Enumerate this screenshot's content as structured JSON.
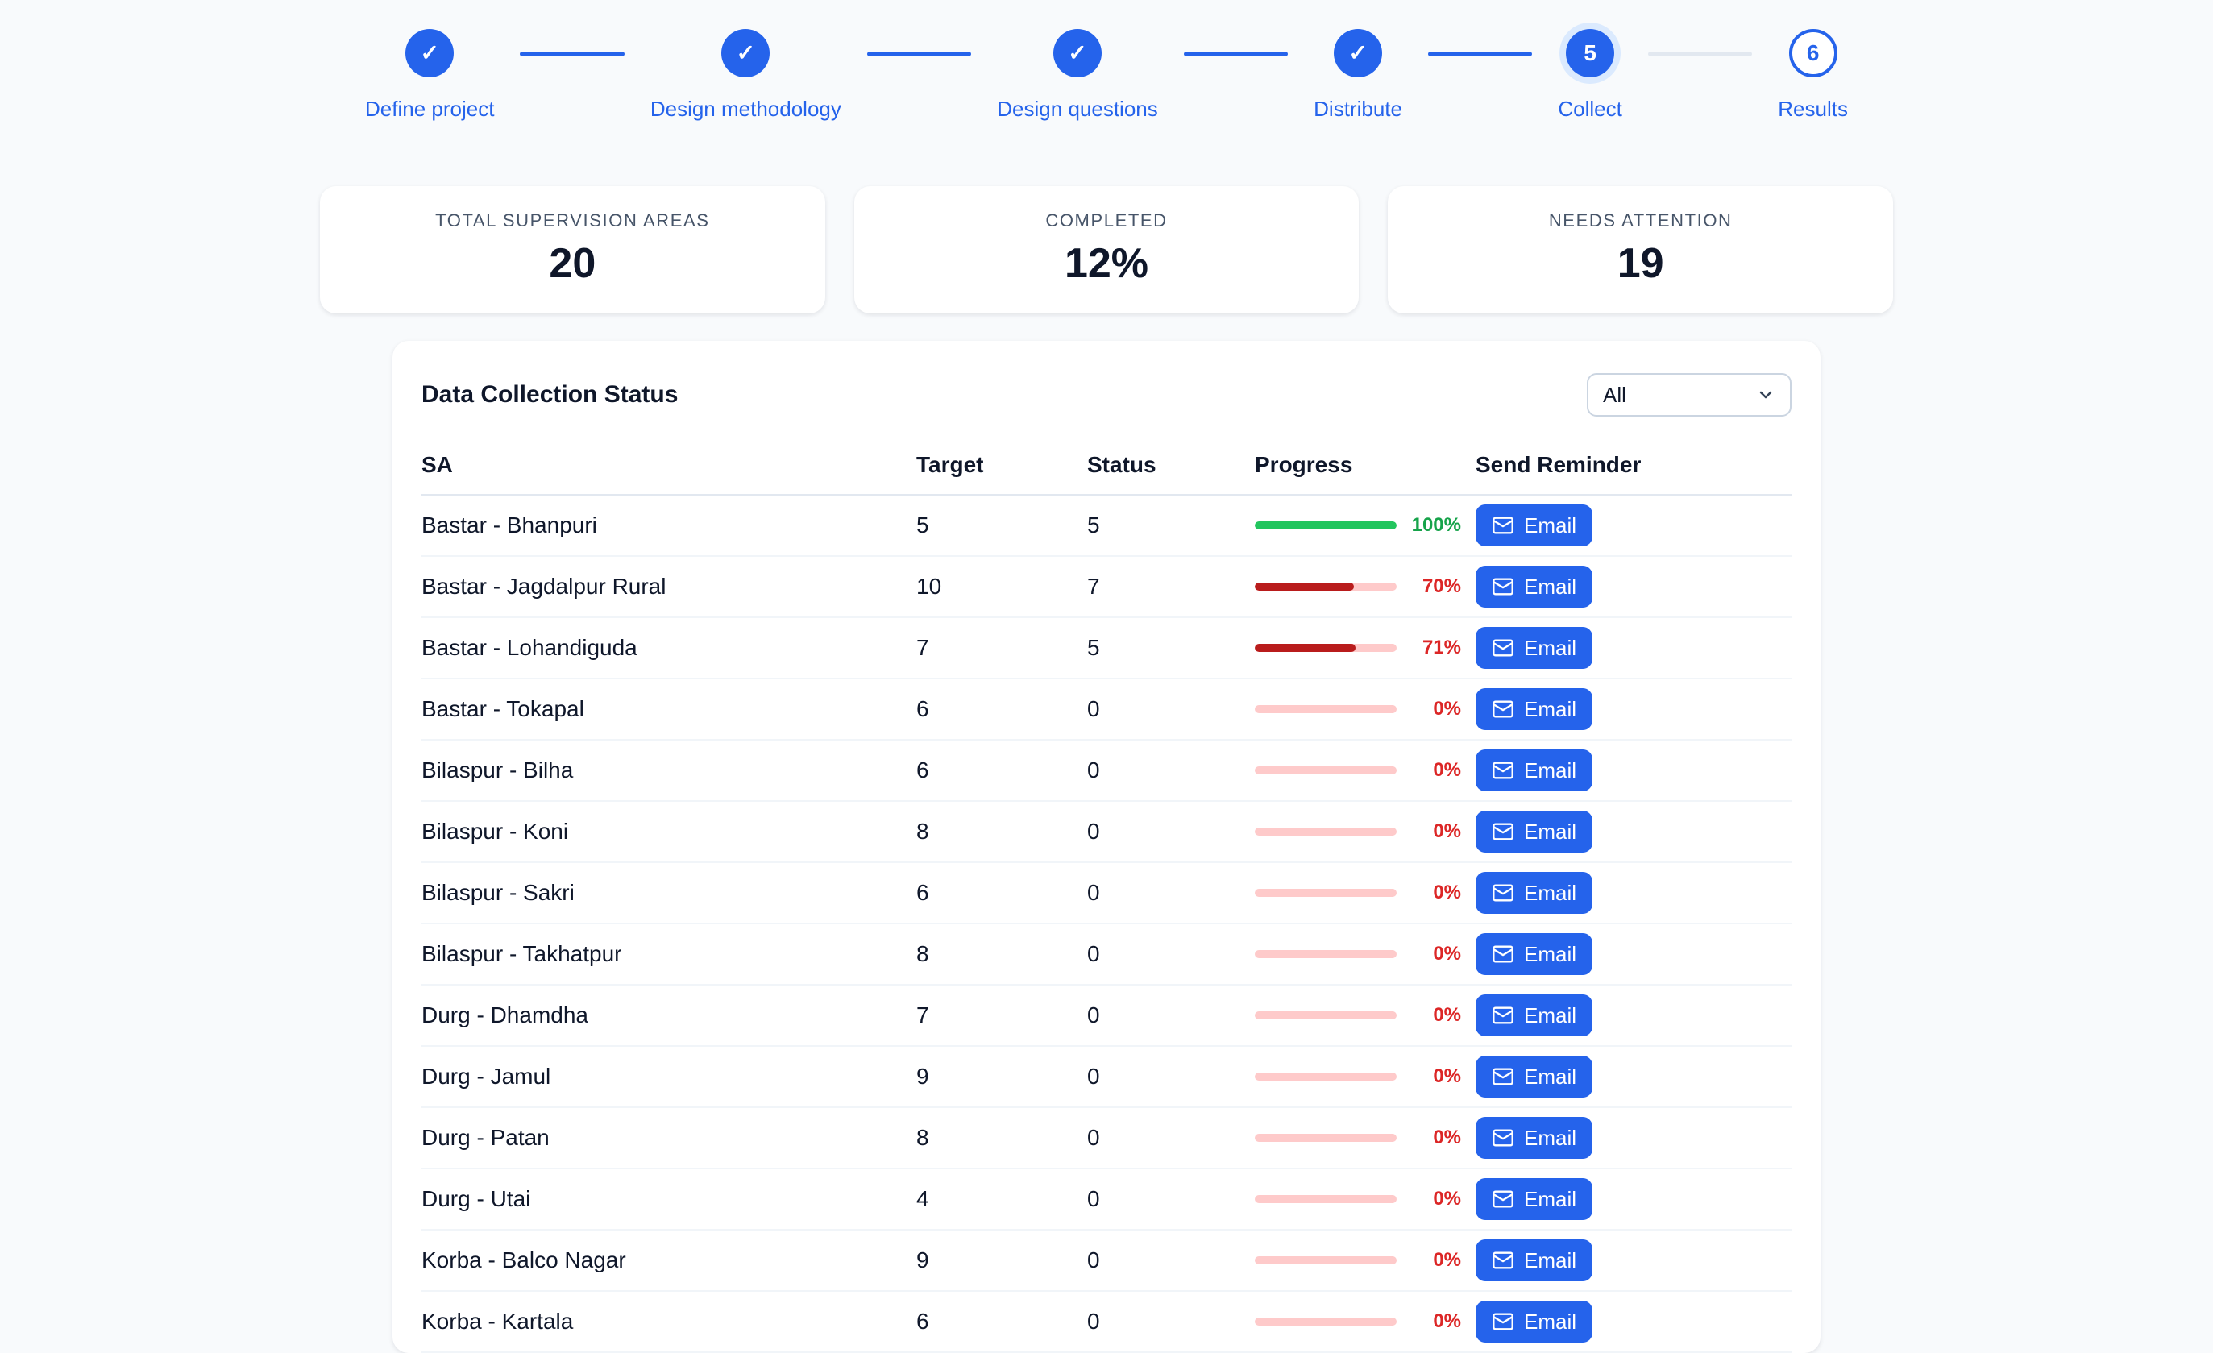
{
  "colors": {
    "accent_blue": "#2563eb",
    "success_green": "#22c55e",
    "success_text": "#16a34a",
    "danger_red": "#b91c1c",
    "danger_text": "#dc2626",
    "track_pink": "#fecaca",
    "background": "#f8fafc"
  },
  "icons": [
    "check-icon",
    "chevron-down-icon",
    "email-icon"
  ],
  "stepper": {
    "steps": [
      {
        "label": "Define project",
        "state": "complete",
        "mark": "✓"
      },
      {
        "label": "Design methodology",
        "state": "complete",
        "mark": "✓"
      },
      {
        "label": "Design questions",
        "state": "complete",
        "mark": "✓"
      },
      {
        "label": "Distribute",
        "state": "complete",
        "mark": "✓"
      },
      {
        "label": "Collect",
        "state": "current",
        "mark": "5"
      },
      {
        "label": "Results",
        "state": "upcoming",
        "mark": "6"
      }
    ]
  },
  "stats": [
    {
      "label": "TOTAL SUPERVISION AREAS",
      "value": "20"
    },
    {
      "label": "COMPLETED",
      "value": "12%"
    },
    {
      "label": "NEEDS ATTENTION",
      "value": "19"
    }
  ],
  "table": {
    "title": "Data Collection Status",
    "filter": {
      "value": "All"
    },
    "columns": [
      "SA",
      "Target",
      "Status",
      "Progress",
      "Send Reminder"
    ],
    "email_button_label": "Email",
    "rows": [
      {
        "sa": "Bastar - Bhanpuri",
        "target": 5,
        "status": 5,
        "progress": 100,
        "progress_label": "100%",
        "state": "complete"
      },
      {
        "sa": "Bastar - Jagdalpur Rural",
        "target": 10,
        "status": 7,
        "progress": 70,
        "progress_label": "70%",
        "state": "attention"
      },
      {
        "sa": "Bastar - Lohandiguda",
        "target": 7,
        "status": 5,
        "progress": 71,
        "progress_label": "71%",
        "state": "attention"
      },
      {
        "sa": "Bastar - Tokapal",
        "target": 6,
        "status": 0,
        "progress": 0,
        "progress_label": "0%",
        "state": "attention"
      },
      {
        "sa": "Bilaspur - Bilha",
        "target": 6,
        "status": 0,
        "progress": 0,
        "progress_label": "0%",
        "state": "attention"
      },
      {
        "sa": "Bilaspur - Koni",
        "target": 8,
        "status": 0,
        "progress": 0,
        "progress_label": "0%",
        "state": "attention"
      },
      {
        "sa": "Bilaspur - Sakri",
        "target": 6,
        "status": 0,
        "progress": 0,
        "progress_label": "0%",
        "state": "attention"
      },
      {
        "sa": "Bilaspur - Takhatpur",
        "target": 8,
        "status": 0,
        "progress": 0,
        "progress_label": "0%",
        "state": "attention"
      },
      {
        "sa": "Durg - Dhamdha",
        "target": 7,
        "status": 0,
        "progress": 0,
        "progress_label": "0%",
        "state": "attention"
      },
      {
        "sa": "Durg - Jamul",
        "target": 9,
        "status": 0,
        "progress": 0,
        "progress_label": "0%",
        "state": "attention"
      },
      {
        "sa": "Durg - Patan",
        "target": 8,
        "status": 0,
        "progress": 0,
        "progress_label": "0%",
        "state": "attention"
      },
      {
        "sa": "Durg - Utai",
        "target": 4,
        "status": 0,
        "progress": 0,
        "progress_label": "0%",
        "state": "attention"
      },
      {
        "sa": "Korba - Balco Nagar",
        "target": 9,
        "status": 0,
        "progress": 0,
        "progress_label": "0%",
        "state": "attention"
      },
      {
        "sa": "Korba - Kartala",
        "target": 6,
        "status": 0,
        "progress": 0,
        "progress_label": "0%",
        "state": "attention"
      }
    ]
  }
}
